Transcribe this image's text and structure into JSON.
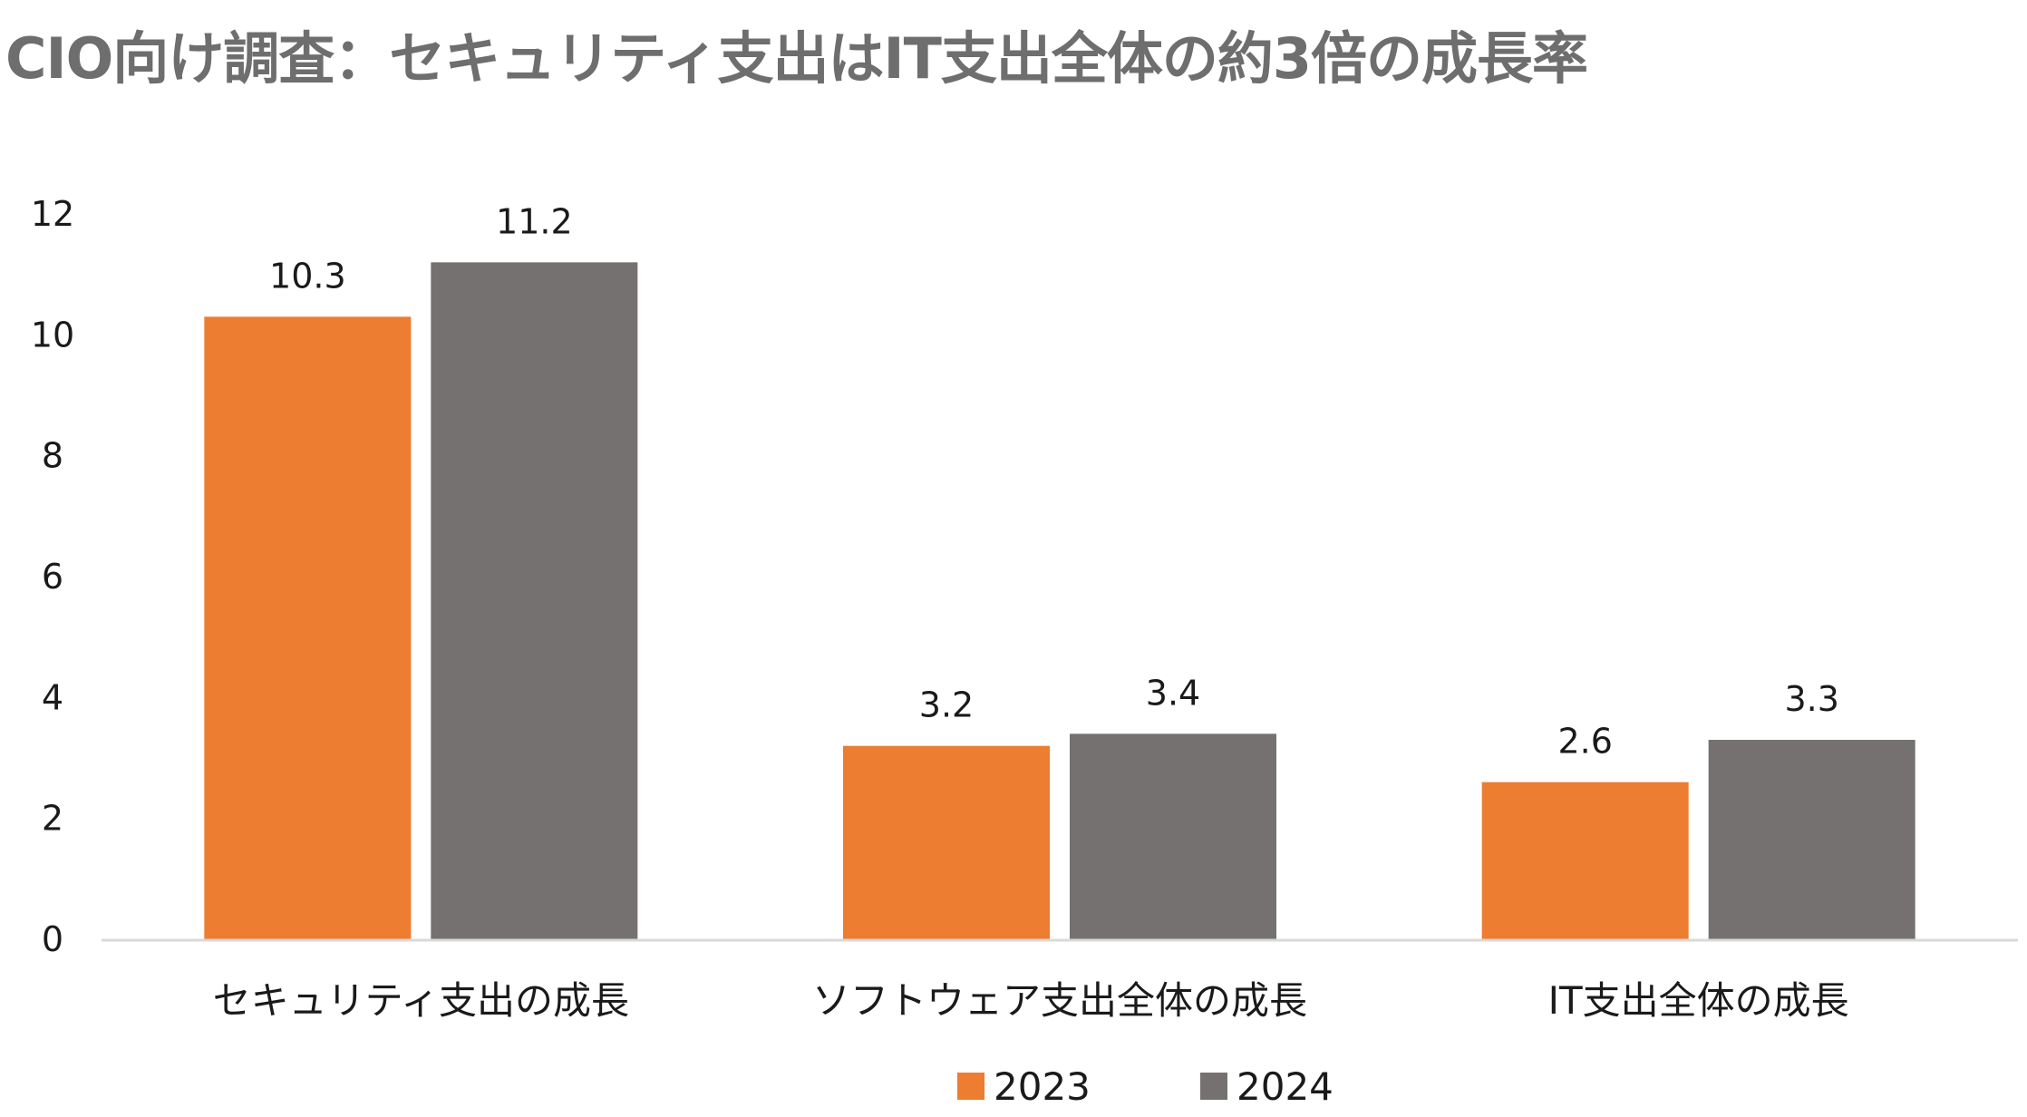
{
  "title": "CIO向け調査：セキュリティ支出はIT支出全体の約3倍の成長率",
  "chart_data": {
    "type": "bar",
    "title": "CIO向け調査：セキュリティ支出はIT支出全体の約3倍の成長率",
    "categories": [
      "セキュリティ支出の成長",
      "ソフトウェア支出全体の成長",
      "IT支出全体の成長"
    ],
    "series": [
      {
        "name": "2023",
        "values": [
          10.3,
          3.2,
          2.6
        ],
        "labels": [
          "10.3",
          "3.2",
          "2.6"
        ],
        "color": "#ED7D31"
      },
      {
        "name": "2024",
        "values": [
          11.2,
          3.4,
          3.3
        ],
        "labels": [
          "11.2",
          "3.4",
          "3.3"
        ],
        "color": "#767171"
      }
    ],
    "ylim": [
      0,
      12
    ],
    "yticks": [
      "0",
      "2",
      "4",
      "6",
      "8",
      "10",
      "12"
    ],
    "grid": false,
    "legend_position": "bottom"
  }
}
